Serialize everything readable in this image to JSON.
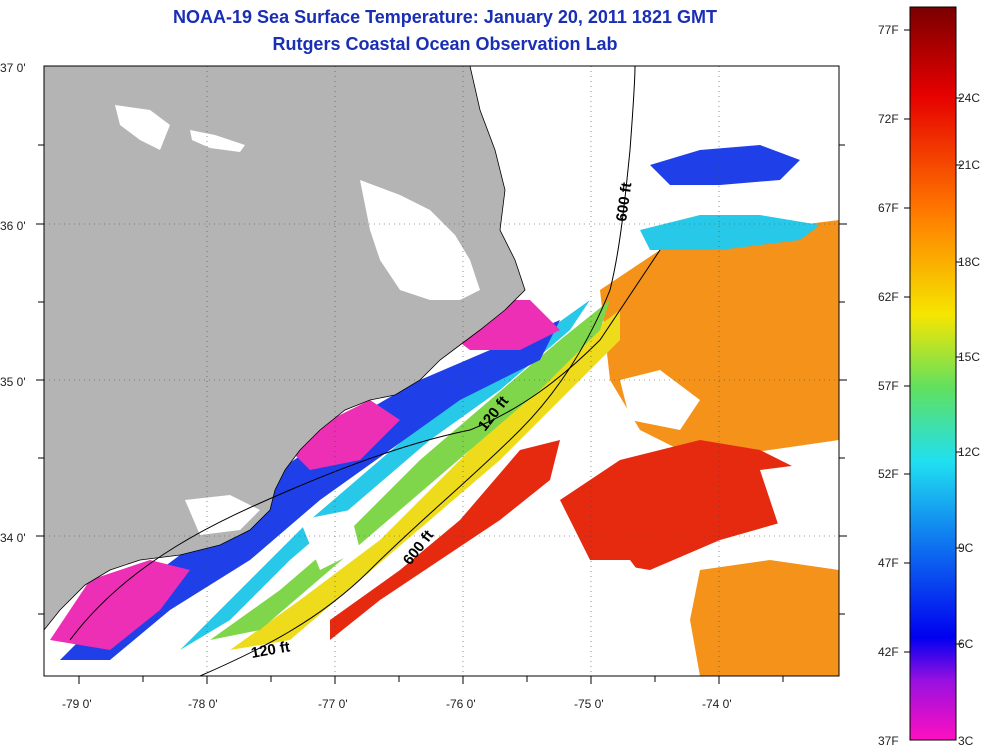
{
  "header": {
    "title": "NOAA-19 Sea Surface Temperature:  January 20, 2011 1821 GMT",
    "subtitle": "Rutgers Coastal Ocean Observation Lab"
  },
  "axes": {
    "lon_labels": [
      "-79 0'",
      "-78 0'",
      "-77 0'",
      "-76 0'",
      "-75 0'",
      "-74 0'"
    ],
    "lat_labels": [
      "37 0'",
      "36 0'",
      "35 0'",
      "34 0'"
    ]
  },
  "contours": {
    "shelf_label": "120 ft",
    "slope_label": "600 ft"
  },
  "colorbar": {
    "fahrenheit": [
      "77F",
      "72F",
      "67F",
      "62F",
      "57F",
      "52F",
      "47F",
      "42F",
      "37F"
    ],
    "celsius": [
      "24C",
      "21C",
      "18C",
      "15C",
      "12C",
      "9C",
      "6C",
      "3C"
    ]
  },
  "colors": {
    "land": "#b4b4b4",
    "no_data": "#ffffff",
    "title": "#1a2fb4",
    "warm": "#e62a10",
    "orange": "#f4921a",
    "yellow": "#eedc1c",
    "green": "#7fd64a",
    "cyan": "#27c8e8",
    "blue": "#1f40e8",
    "magenta": "#ec2fb4"
  }
}
